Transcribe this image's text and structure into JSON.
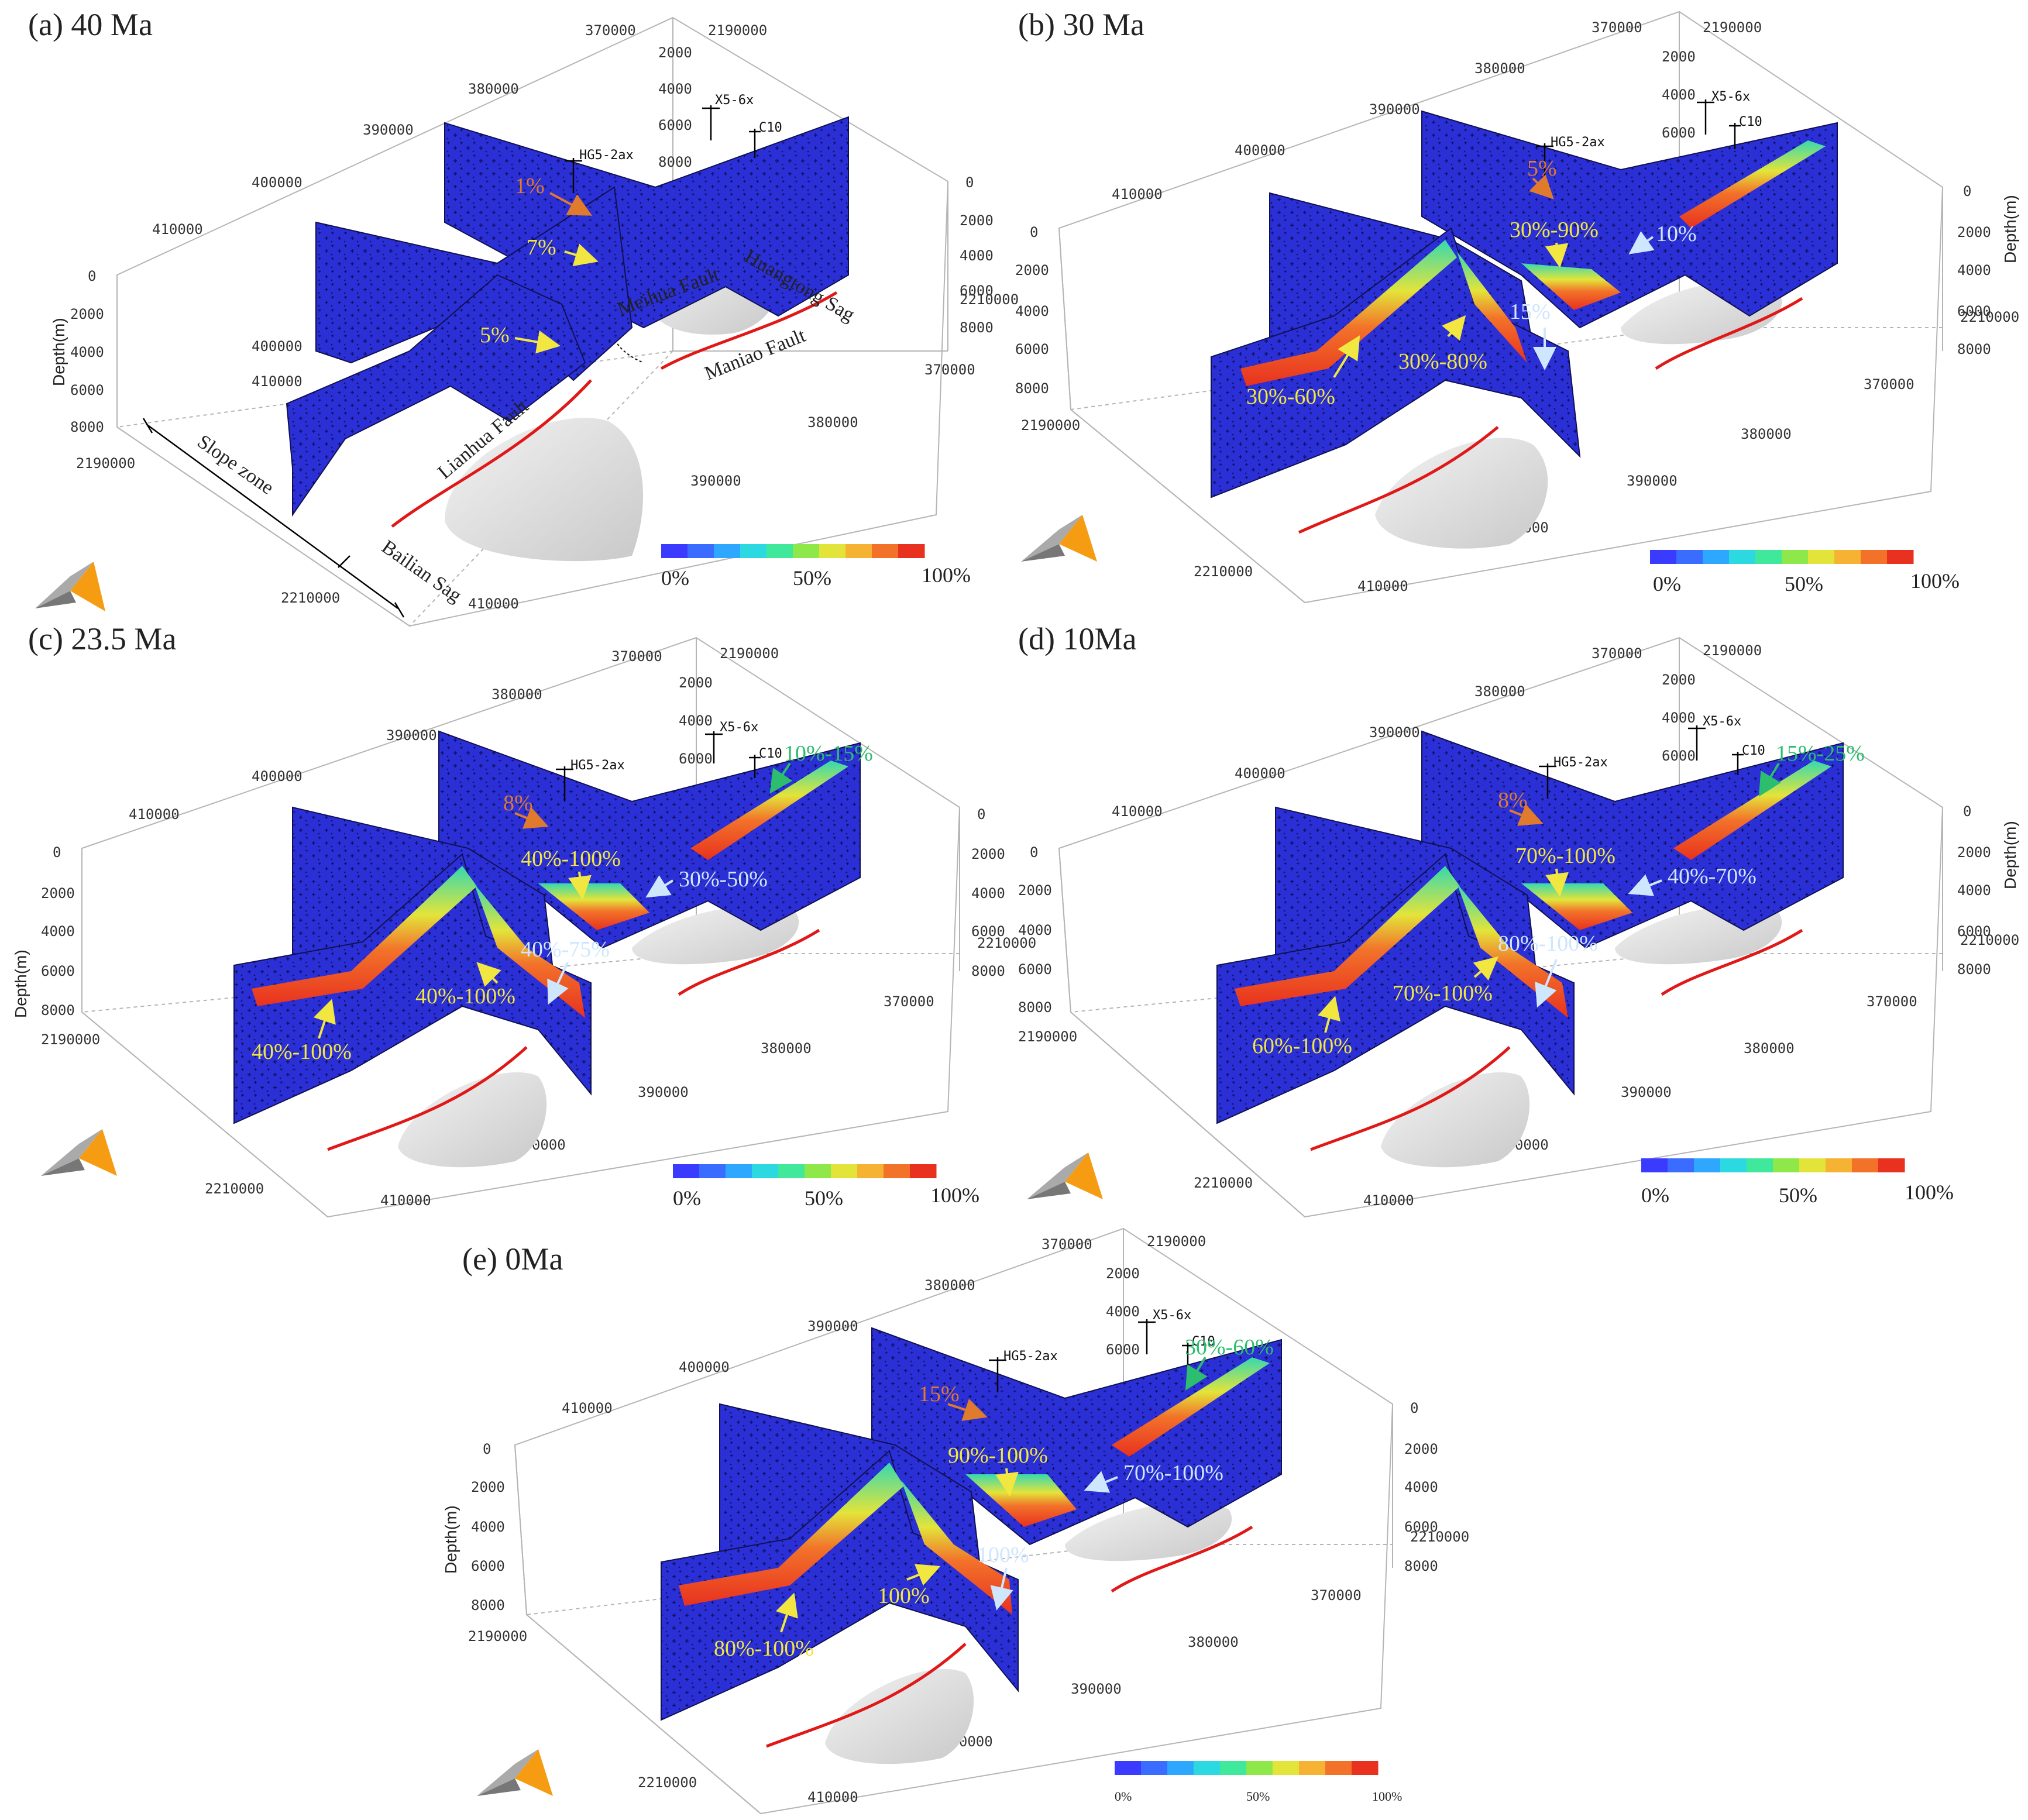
{
  "panels": [
    {
      "id": "a",
      "title": "(a) 40 Ma",
      "depth_label": "Depth(m)",
      "depth_ticks": [
        "0",
        "2000",
        "4000",
        "6000",
        "8000"
      ],
      "right_depth_ticks": [
        "0",
        "2000",
        "4000",
        "6000",
        "8000"
      ],
      "top_depth_ticks": [
        "2000",
        "4000",
        "6000",
        "8000"
      ],
      "x_ticks": [
        "370000",
        "380000",
        "390000",
        "400000",
        "410000"
      ],
      "y_ticks": [
        "2190000",
        "2210000"
      ],
      "lower_x_ticks": [
        "380000",
        "390000",
        "400000",
        "410000"
      ],
      "side_y_ticks": [
        "400000",
        "410000"
      ],
      "lower_right_ticks": [
        "2210000",
        "370000"
      ],
      "wells": [
        "HG5-2ax",
        "X5-6x",
        "C10"
      ],
      "structure_labels": [
        "Meihua Fault",
        "Huangtong Sag",
        "Maniao Fault",
        "Lianhua Fault",
        "Slope zone",
        "Bailian Sag"
      ],
      "annotations": [
        {
          "text": "1%",
          "color": "#e07a2c"
        },
        {
          "text": "7%",
          "color": "#f2e640"
        },
        {
          "text": "5%",
          "color": "#f2e640"
        }
      ],
      "colorbar": {
        "min_label": "0%",
        "mid_label": "50%",
        "max_label": "100%"
      }
    },
    {
      "id": "b",
      "title": "(b) 30 Ma",
      "depth_label": "Depth(m)",
      "depth_ticks": [
        "0",
        "2000",
        "4000",
        "6000",
        "8000"
      ],
      "right_depth_ticks": [
        "0",
        "2000",
        "4000",
        "6000",
        "8000"
      ],
      "top_depth_ticks": [
        "2000",
        "4000",
        "6000"
      ],
      "x_ticks": [
        "370000",
        "380000",
        "390000",
        "400000",
        "410000"
      ],
      "y_ticks": [
        "2190000",
        "2210000"
      ],
      "lower_x_ticks": [
        "370000",
        "380000",
        "390000",
        "400000",
        "410000"
      ],
      "lower_right_ticks": [
        "2210000"
      ],
      "wells": [
        "HG5-2ax",
        "X5-6x",
        "C10"
      ],
      "annotations": [
        {
          "text": "5%",
          "color": "#e07a2c"
        },
        {
          "text": "30%-90%",
          "color": "#f2e640"
        },
        {
          "text": "10%",
          "color": "#cfe6ff"
        },
        {
          "text": "15%",
          "color": "#cfe6ff"
        },
        {
          "text": "30%-80%",
          "color": "#f2e640"
        },
        {
          "text": "30%-60%",
          "color": "#f2e640"
        }
      ],
      "colorbar": {
        "min_label": "0%",
        "mid_label": "50%",
        "max_label": "100%"
      }
    },
    {
      "id": "c",
      "title": "(c) 23.5 Ma",
      "depth_label": "Depth(m)",
      "depth_ticks": [
        "0",
        "2000",
        "4000",
        "6000",
        "8000"
      ],
      "right_depth_ticks": [
        "0",
        "2000",
        "4000",
        "6000",
        "8000"
      ],
      "top_depth_ticks": [
        "2000",
        "4000",
        "6000"
      ],
      "x_ticks": [
        "370000",
        "380000",
        "390000",
        "400000",
        "410000"
      ],
      "y_ticks": [
        "2190000",
        "2210000"
      ],
      "lower_x_ticks": [
        "370000",
        "380000",
        "390000",
        "400000",
        "410000"
      ],
      "lower_right_ticks": [
        "2210000"
      ],
      "wells": [
        "HG5-2ax",
        "X5-6x",
        "C10"
      ],
      "annotations": [
        {
          "text": "8%",
          "color": "#e07a2c"
        },
        {
          "text": "40%-100%",
          "color": "#f2e640"
        },
        {
          "text": "30%-50%",
          "color": "#cfe6ff"
        },
        {
          "text": "40%-75%",
          "color": "#cfe6ff"
        },
        {
          "text": "40%-100%",
          "color": "#f2e640"
        },
        {
          "text": "40%-100%",
          "color": "#f2e640"
        },
        {
          "text": "10%-15%",
          "color": "#2dbd6e"
        }
      ],
      "colorbar": {
        "min_label": "0%",
        "mid_label": "50%",
        "max_label": "100%"
      }
    },
    {
      "id": "d",
      "title": "(d) 10Ma",
      "depth_label": "Depth(m)",
      "depth_ticks": [
        "0",
        "2000",
        "4000",
        "6000",
        "8000"
      ],
      "right_depth_ticks": [
        "0",
        "2000",
        "4000",
        "6000",
        "8000"
      ],
      "top_depth_ticks": [
        "2000",
        "4000",
        "6000"
      ],
      "x_ticks": [
        "370000",
        "380000",
        "390000",
        "400000",
        "410000"
      ],
      "y_ticks": [
        "2190000",
        "2210000"
      ],
      "lower_x_ticks": [
        "370000",
        "380000",
        "390000",
        "400000",
        "410000"
      ],
      "lower_right_ticks": [
        "2210000"
      ],
      "wells": [
        "HG5-2ax",
        "X5-6x",
        "C10"
      ],
      "annotations": [
        {
          "text": "8%",
          "color": "#e07a2c"
        },
        {
          "text": "70%-100%",
          "color": "#f2e640"
        },
        {
          "text": "40%-70%",
          "color": "#cfe6ff"
        },
        {
          "text": "80%-100%",
          "color": "#cfe6ff"
        },
        {
          "text": "70%-100%",
          "color": "#f2e640"
        },
        {
          "text": "60%-100%",
          "color": "#f2e640"
        },
        {
          "text": "15%-25%",
          "color": "#2dbd6e"
        }
      ],
      "colorbar": {
        "min_label": "0%",
        "mid_label": "50%",
        "max_label": "100%"
      }
    },
    {
      "id": "e",
      "title": "(e) 0Ma",
      "depth_label": "Depth(m)",
      "depth_ticks": [
        "0",
        "2000",
        "4000",
        "6000",
        "8000"
      ],
      "right_depth_ticks": [
        "0",
        "2000",
        "4000",
        "6000",
        "8000"
      ],
      "top_depth_ticks": [
        "2000",
        "4000",
        "6000"
      ],
      "x_ticks": [
        "370000",
        "380000",
        "390000",
        "400000",
        "410000"
      ],
      "y_ticks": [
        "2190000",
        "2210000"
      ],
      "lower_x_ticks": [
        "370000",
        "380000",
        "390000",
        "400000",
        "410000"
      ],
      "lower_right_ticks": [
        "2210000"
      ],
      "wells": [
        "HG5-2ax",
        "X5-6x",
        "C10"
      ],
      "annotations": [
        {
          "text": "15%",
          "color": "#e07a2c"
        },
        {
          "text": "90%-100%",
          "color": "#f2e640"
        },
        {
          "text": "70%-100%",
          "color": "#cfe6ff"
        },
        {
          "text": "100%",
          "color": "#cfe6ff"
        },
        {
          "text": "100%",
          "color": "#f2e640"
        },
        {
          "text": "80%-100%",
          "color": "#f2e640"
        },
        {
          "text": "30%-60%",
          "color": "#2dbd6e"
        }
      ],
      "colorbar": {
        "min_label": "0%",
        "mid_label": "50%",
        "max_label": "100%"
      }
    }
  ],
  "colors": {
    "section_fill": "#2b2fd6",
    "fault_line": "#e01818",
    "sag_fill": "#d9d9d9",
    "grid_line": "#b5b5b5",
    "high_value": "#e8311f",
    "mid_value": "#35d9b0"
  },
  "colorbar_stops": [
    "#3b3bff",
    "#3a6cff",
    "#2ea7ff",
    "#2dd9e0",
    "#3fe89a",
    "#8fe84a",
    "#e3e43a",
    "#f6b232",
    "#f2722a",
    "#e8311f"
  ]
}
